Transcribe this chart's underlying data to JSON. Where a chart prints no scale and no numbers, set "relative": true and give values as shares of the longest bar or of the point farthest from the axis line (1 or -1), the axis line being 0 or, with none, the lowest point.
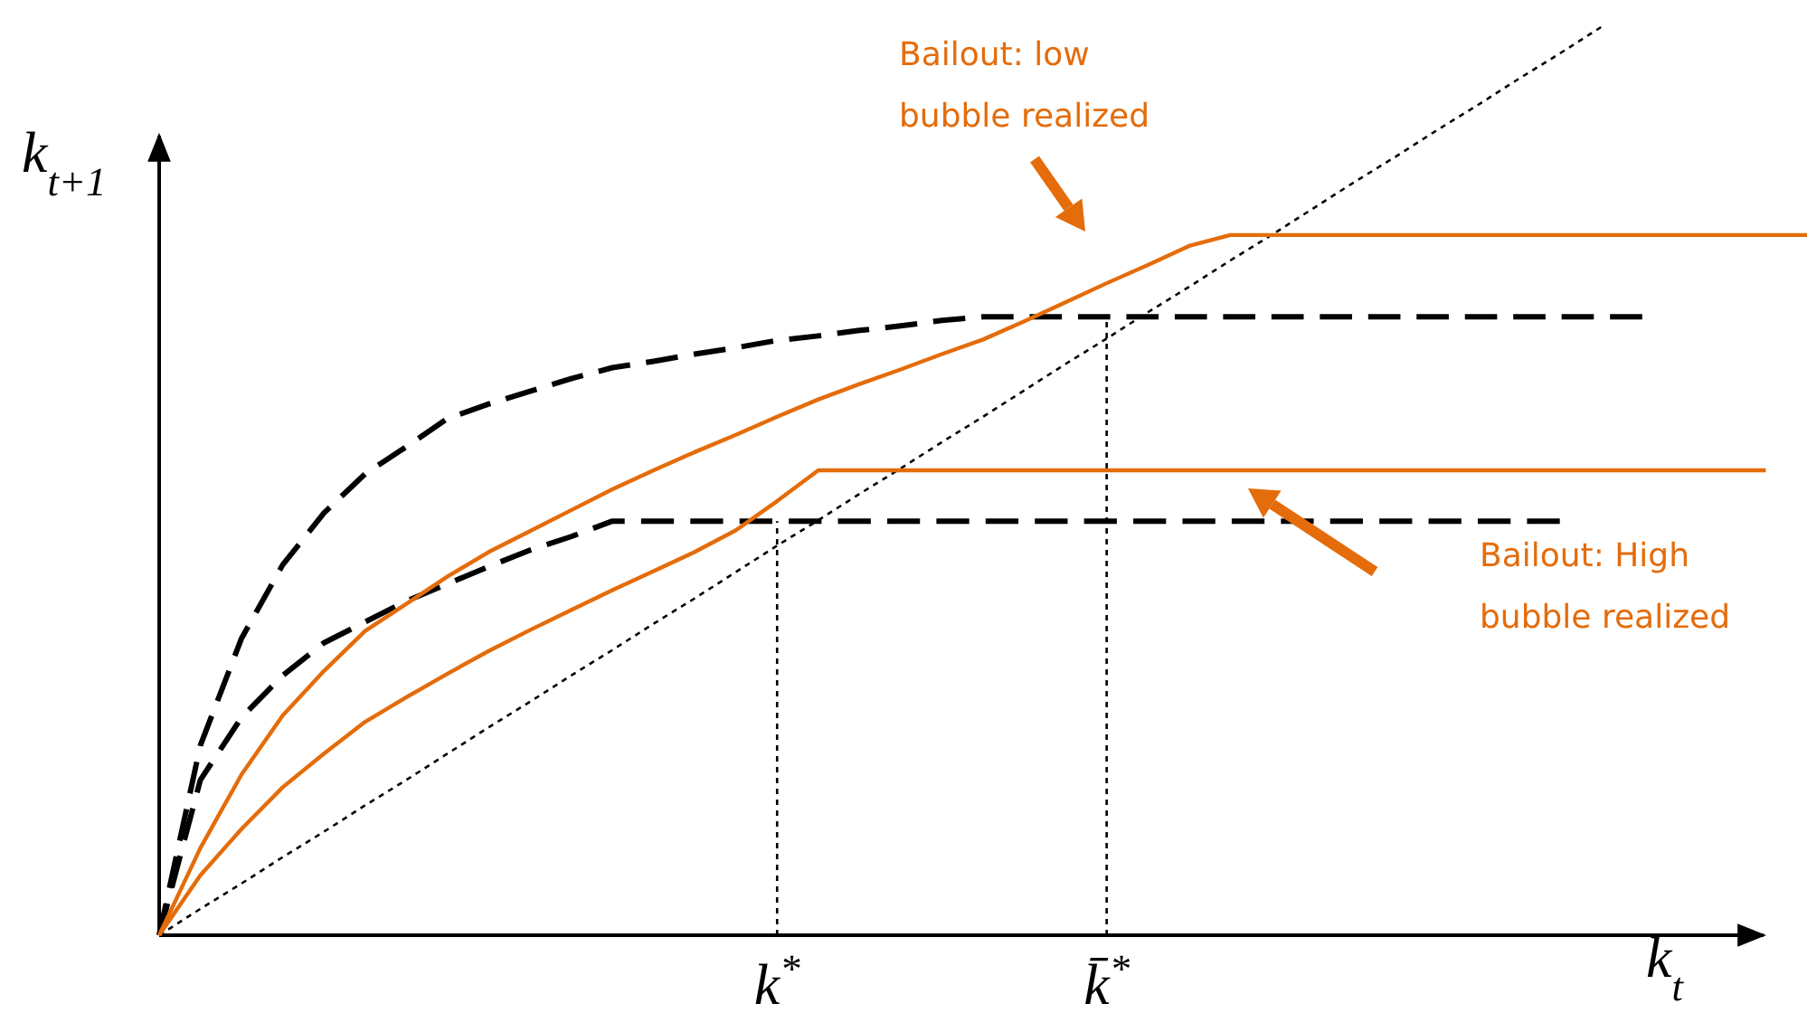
{
  "chart_data": {
    "type": "line",
    "relative": true,
    "xlabel": "k$_{t}$",
    "ylabel": "k$_{t+1}$",
    "marker": "none",
    "categories": [
      null,
      null,
      null,
      null,
      null,
      null,
      null,
      null,
      null,
      null,
      null,
      null,
      null,
      null,
      null,
      "k$^{*}$",
      null,
      null,
      null,
      null,
      null,
      null,
      null,
      "k̄$^{*}$",
      null,
      null,
      null,
      null,
      null,
      null,
      null,
      null,
      null,
      null,
      null,
      null,
      null,
      null,
      null,
      null,
      null
    ],
    "series": [
      {
        "color": "#000000",
        "line_style": "dotted",
        "values": [
          0,
          0.029,
          0.057,
          0.086,
          0.114,
          0.143,
          0.171,
          0.2,
          0.229,
          0.257,
          0.286,
          0.314,
          0.343,
          0.371,
          0.4,
          0.429,
          0.457,
          0.486,
          0.514,
          0.543,
          0.571,
          0.6,
          0.629,
          0.657,
          0.686,
          0.714,
          0.743,
          0.771,
          0.8,
          0.829,
          0.857,
          0.886,
          0.914,
          0.943,
          0.971,
          1,
          null,
          null,
          null,
          null,
          null
        ]
      },
      {
        "color": "#000000",
        "line_style": "dashed",
        "values": [
          0,
          0.209,
          0.327,
          0.408,
          0.465,
          0.508,
          0.538,
          0.569,
          0.585,
          0.599,
          0.613,
          0.625,
          0.632,
          0.64,
          0.647,
          0.655,
          0.66,
          0.666,
          0.671,
          0.677,
          0.681,
          0.681,
          0.681,
          0.681,
          0.681,
          0.681,
          0.681,
          0.681,
          0.681,
          0.681,
          0.681,
          0.681,
          0.681,
          0.681,
          0.681,
          0.681,
          0.681,
          null,
          null,
          null,
          null
        ]
      },
      {
        "color": "#000000",
        "line_style": "dashed",
        "values": [
          0,
          0.171,
          0.24,
          0.286,
          0.322,
          0.345,
          0.368,
          0.387,
          0.406,
          0.424,
          0.439,
          0.456,
          0.456,
          0.456,
          0.456,
          0.456,
          0.456,
          0.456,
          0.456,
          0.456,
          0.456,
          0.456,
          0.456,
          0.456,
          0.456,
          0.456,
          0.456,
          0.456,
          0.456,
          0.456,
          0.456,
          0.456,
          0.456,
          0.456,
          0.456,
          null,
          null,
          null,
          null,
          null,
          null
        ]
      },
      {
        "color": "#e46c0a",
        "line_style": "solid",
        "values": [
          0,
          0.096,
          0.177,
          0.242,
          0.291,
          0.335,
          0.365,
          0.395,
          0.422,
          0.445,
          0.468,
          0.491,
          0.512,
          0.532,
          0.551,
          0.571,
          0.59,
          0.607,
          0.623,
          0.64,
          0.656,
          0.676,
          0.697,
          0.718,
          0.738,
          0.759,
          0.771,
          0.771,
          0.771,
          0.771,
          0.771,
          0.771,
          0.771,
          0.771,
          0.771,
          0.771,
          0.771,
          0.771,
          0.771,
          0.771,
          0.771
        ]
      },
      {
        "color": "#e46c0a",
        "line_style": "solid",
        "values": [
          0,
          0.066,
          0.117,
          0.163,
          0.2,
          0.235,
          0.262,
          0.288,
          0.313,
          0.336,
          0.358,
          0.38,
          0.401,
          0.422,
          0.446,
          0.478,
          0.512,
          0.512,
          0.512,
          0.512,
          0.512,
          0.512,
          0.512,
          0.512,
          0.512,
          0.512,
          0.512,
          0.512,
          0.512,
          0.512,
          0.512,
          0.512,
          0.512,
          0.512,
          0.512,
          0.512,
          0.512,
          0.512,
          0.512,
          0.512,
          null
        ]
      }
    ],
    "ref_lines": [
      {
        "axis": "x",
        "value": "k$^{*}$",
        "line_style": "dotted"
      },
      {
        "axis": "x",
        "value": "k̄$^{*}$",
        "line_style": "dotted"
      }
    ],
    "annotations": [
      "Bailout: low bubble realized",
      "Bailout: High bubble realized"
    ]
  }
}
